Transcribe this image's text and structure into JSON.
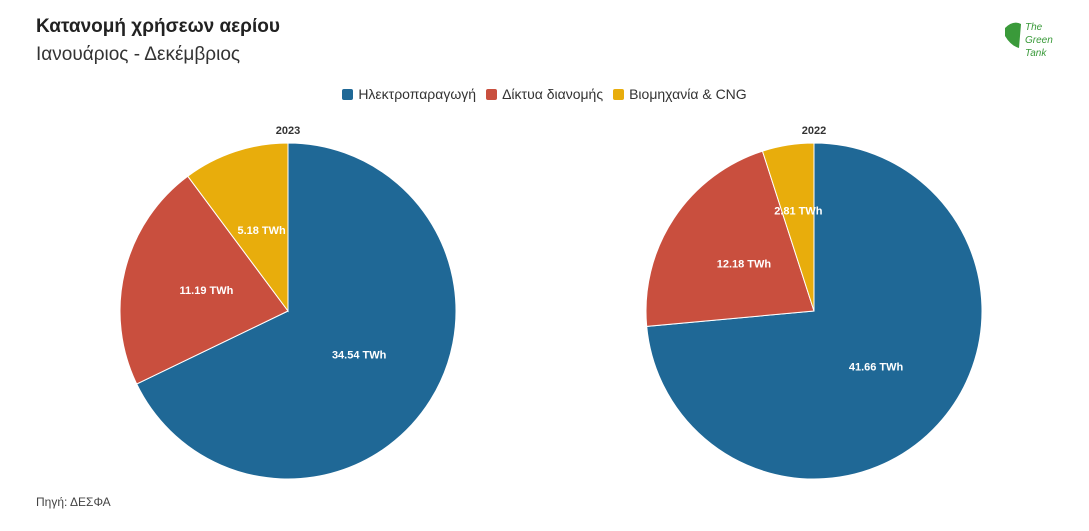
{
  "title": "Κατανομή χρήσεων αερίου",
  "subtitle": "Ιανουάριος - Δεκέμβριος",
  "source": "Πηγή: ΔΕΣΦΑ",
  "logo": [
    "The",
    "Green",
    "Tank"
  ],
  "chart_data": [
    {
      "type": "pie",
      "title": "2023",
      "categories": [
        "Ηλεκτροπαραγωγή",
        "Δίκτυα διανομής",
        "Βιομηχανία & CNG"
      ],
      "values": [
        34.54,
        11.19,
        5.18
      ],
      "value_labels": [
        "34.54 TWh",
        "11.19 TWh",
        "5.18 TWh"
      ],
      "colors": [
        "#1f6896",
        "#c94f3e",
        "#e8ad0c"
      ]
    },
    {
      "type": "pie",
      "title": "2022",
      "categories": [
        "Ηλεκτροπαραγωγή",
        "Δίκτυα διανομής",
        "Βιομηχανία & CNG"
      ],
      "values": [
        41.66,
        12.18,
        2.81
      ],
      "value_labels": [
        "41.66 TWh",
        "12.18 TWh",
        "2.81 TWh"
      ],
      "colors": [
        "#1f6896",
        "#c94f3e",
        "#e8ad0c"
      ]
    }
  ]
}
